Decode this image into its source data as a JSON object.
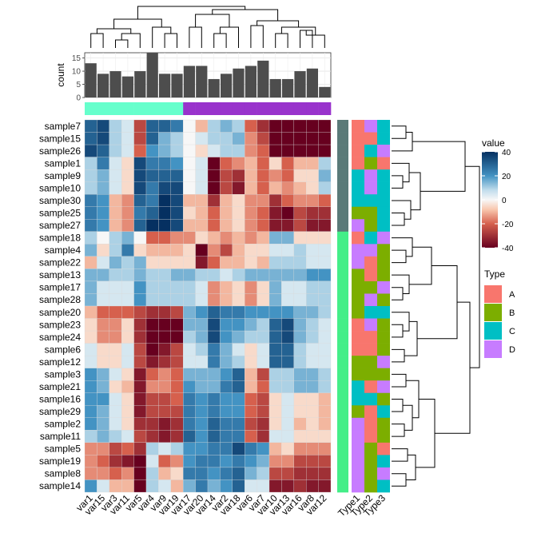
{
  "chart_data": {
    "type": "heatmap",
    "title": "",
    "rows": [
      "sample7",
      "sample15",
      "sample26",
      "sample1",
      "sample9",
      "sample10",
      "sample30",
      "sample25",
      "sample27",
      "sample18",
      "sample4",
      "sample22",
      "sample13",
      "sample17",
      "sample28",
      "sample20",
      "sample23",
      "sample24",
      "sample6",
      "sample12",
      "sample3",
      "sample21",
      "sample16",
      "sample29",
      "sample2",
      "sample11",
      "sample5",
      "sample19",
      "sample8",
      "sample14"
    ],
    "columns": [
      "var1",
      "var15",
      "var3",
      "var11",
      "var5",
      "var4",
      "var9",
      "var19",
      "var17",
      "var20",
      "var14",
      "var2",
      "var18",
      "var6",
      "var7",
      "var10",
      "var13",
      "var16",
      "var8",
      "var12"
    ],
    "values": [
      [
        30,
        35,
        10,
        5,
        -25,
        30,
        30,
        25,
        0,
        -10,
        10,
        15,
        10,
        -20,
        -30,
        -40,
        -45,
        -40,
        -40,
        -45
      ],
      [
        30,
        35,
        10,
        5,
        -25,
        30,
        15,
        10,
        0,
        5,
        10,
        10,
        15,
        -15,
        -25,
        -40,
        -40,
        -45,
        -45,
        -45
      ],
      [
        35,
        30,
        10,
        5,
        -20,
        20,
        15,
        10,
        0,
        -5,
        5,
        10,
        10,
        -15,
        -20,
        -40,
        -40,
        -40,
        -40,
        -40
      ],
      [
        10,
        25,
        5,
        -5,
        35,
        25,
        25,
        20,
        0,
        5,
        -40,
        -20,
        -15,
        -10,
        -20,
        -5,
        -20,
        -10,
        -10,
        10
      ],
      [
        10,
        15,
        5,
        -5,
        35,
        30,
        30,
        30,
        0,
        5,
        -40,
        -25,
        -30,
        -10,
        -20,
        -15,
        -20,
        -5,
        -5,
        15
      ],
      [
        10,
        15,
        5,
        -5,
        35,
        25,
        35,
        35,
        0,
        5,
        -40,
        -25,
        -35,
        -10,
        -20,
        -10,
        -15,
        -10,
        -5,
        10
      ],
      [
        25,
        20,
        -10,
        -15,
        30,
        25,
        40,
        35,
        -10,
        -10,
        -30,
        -10,
        -5,
        -15,
        -15,
        -30,
        -20,
        -15,
        -15,
        -20
      ],
      [
        25,
        20,
        -10,
        -15,
        25,
        30,
        40,
        35,
        -5,
        -10,
        -20,
        -10,
        -5,
        -15,
        -20,
        -35,
        -40,
        -25,
        -30,
        -30
      ],
      [
        25,
        20,
        -10,
        -15,
        30,
        40,
        40,
        35,
        -10,
        -10,
        -20,
        -10,
        -5,
        -15,
        -20,
        -35,
        -35,
        -25,
        -35,
        -35
      ],
      [
        10,
        0,
        10,
        15,
        0,
        -20,
        -20,
        -15,
        -15,
        -5,
        -10,
        -15,
        -10,
        -15,
        -10,
        15,
        15,
        -5,
        -5,
        -5
      ],
      [
        15,
        -5,
        10,
        25,
        -5,
        -10,
        -10,
        -10,
        -5,
        -45,
        -15,
        -25,
        -10,
        -5,
        -5,
        5,
        5,
        10,
        5,
        5
      ],
      [
        -10,
        5,
        15,
        10,
        15,
        -5,
        -5,
        -5,
        -5,
        -35,
        -20,
        -10,
        -10,
        -5,
        -10,
        10,
        10,
        10,
        5,
        5
      ],
      [
        15,
        15,
        10,
        10,
        15,
        10,
        10,
        15,
        15,
        10,
        10,
        5,
        10,
        15,
        15,
        15,
        15,
        15,
        20,
        20
      ],
      [
        15,
        5,
        5,
        5,
        20,
        10,
        10,
        10,
        10,
        5,
        -15,
        -10,
        -5,
        -15,
        -5,
        15,
        5,
        5,
        10,
        10
      ],
      [
        15,
        5,
        5,
        5,
        20,
        10,
        10,
        10,
        10,
        5,
        -15,
        -10,
        -5,
        -15,
        -5,
        15,
        5,
        5,
        10,
        10
      ],
      [
        -10,
        -20,
        -20,
        -20,
        -25,
        -30,
        -30,
        -25,
        15,
        20,
        30,
        25,
        25,
        20,
        20,
        20,
        20,
        15,
        15,
        10
      ],
      [
        -5,
        -15,
        -15,
        -5,
        -30,
        -45,
        -45,
        -40,
        15,
        15,
        35,
        20,
        20,
        15,
        10,
        30,
        35,
        15,
        10,
        5
      ],
      [
        -5,
        -15,
        -15,
        -5,
        -30,
        -45,
        -45,
        -40,
        10,
        15,
        35,
        20,
        15,
        10,
        10,
        30,
        35,
        15,
        10,
        5
      ],
      [
        5,
        -5,
        -5,
        5,
        -25,
        -40,
        -35,
        -25,
        5,
        10,
        25,
        15,
        5,
        -5,
        5,
        30,
        30,
        10,
        5,
        5
      ],
      [
        5,
        -5,
        -5,
        5,
        -25,
        -35,
        -30,
        -25,
        5,
        5,
        25,
        15,
        10,
        -5,
        5,
        30,
        30,
        10,
        5,
        5
      ],
      [
        20,
        15,
        5,
        -5,
        -35,
        -20,
        -15,
        -20,
        15,
        15,
        15,
        20,
        30,
        -10,
        -25,
        10,
        10,
        15,
        15,
        10
      ],
      [
        20,
        15,
        -5,
        -10,
        -35,
        -15,
        -15,
        -20,
        20,
        15,
        15,
        25,
        30,
        -10,
        -20,
        10,
        10,
        15,
        15,
        10
      ],
      [
        20,
        20,
        5,
        -5,
        -35,
        -25,
        -25,
        -20,
        25,
        20,
        25,
        20,
        20,
        -20,
        -25,
        -5,
        5,
        -5,
        -5,
        -10
      ],
      [
        20,
        15,
        5,
        -5,
        -35,
        -25,
        -25,
        -25,
        25,
        20,
        25,
        20,
        20,
        -20,
        -25,
        -5,
        5,
        -5,
        -5,
        -10
      ],
      [
        20,
        15,
        5,
        -5,
        -30,
        -30,
        -35,
        -30,
        25,
        20,
        30,
        25,
        25,
        -25,
        -30,
        -5,
        5,
        -10,
        -5,
        -10
      ],
      [
        10,
        15,
        10,
        5,
        -25,
        -30,
        -35,
        -30,
        30,
        20,
        30,
        25,
        25,
        -20,
        -30,
        5,
        5,
        -5,
        -5,
        -5
      ],
      [
        -15,
        -15,
        -25,
        -20,
        -30,
        10,
        5,
        10,
        20,
        20,
        25,
        25,
        35,
        25,
        20,
        -10,
        -5,
        -15,
        -15,
        -15
      ],
      [
        -15,
        -20,
        -30,
        -35,
        -40,
        5,
        -20,
        -15,
        20,
        25,
        25,
        20,
        25,
        20,
        15,
        -15,
        -15,
        -25,
        -25,
        -25
      ],
      [
        -15,
        -15,
        -20,
        -15,
        -40,
        10,
        -10,
        -5,
        25,
        25,
        20,
        25,
        30,
        15,
        10,
        -25,
        -25,
        -30,
        -30,
        -30
      ],
      [
        20,
        5,
        -10,
        -10,
        -45,
        10,
        5,
        -10,
        15,
        25,
        15,
        20,
        30,
        5,
        5,
        -35,
        -35,
        -30,
        -35,
        -35
      ]
    ],
    "color_scale": {
      "name": "value",
      "range": [
        -40,
        40
      ],
      "ticks": [
        40,
        20,
        0,
        -20,
        -40
      ],
      "low": "#67001F",
      "mid": "#F7F7F7",
      "high": "#053061"
    },
    "top_barplot": {
      "ylabel": "count",
      "yticks": [
        0,
        5,
        10,
        15
      ],
      "ylim": [
        0,
        17
      ],
      "values": [
        13,
        9,
        10,
        8,
        10,
        17,
        9,
        9,
        12,
        12,
        7,
        9,
        11,
        12,
        14,
        7,
        7,
        10,
        11,
        4
      ],
      "bar_color": "#4D4D4D"
    },
    "column_groups": {
      "values": [
        1,
        1,
        1,
        1,
        1,
        1,
        1,
        1,
        2,
        2,
        2,
        2,
        2,
        2,
        2,
        2,
        2,
        2,
        2,
        2
      ],
      "colors": {
        "1": "#66FFCC",
        "2": "#9933CC"
      }
    },
    "row_groups": {
      "values": [
        1,
        1,
        1,
        1,
        1,
        1,
        1,
        1,
        1,
        2,
        2,
        2,
        2,
        2,
        2,
        2,
        2,
        2,
        2,
        2,
        2,
        2,
        2,
        2,
        2,
        2,
        2,
        2,
        2,
        2
      ],
      "colors": {
        "1": "#5A7A78",
        "2": "#44EE88"
      }
    },
    "type_annotations": {
      "labels": [
        "Type1",
        "Type2",
        "Type3"
      ],
      "values": [
        [
          "A",
          "D",
          "C"
        ],
        [
          "A",
          "A",
          "C"
        ],
        [
          "A",
          "C",
          "D"
        ],
        [
          "A",
          "B",
          "A"
        ],
        [
          "C",
          "D",
          "C"
        ],
        [
          "C",
          "D",
          "C"
        ],
        [
          "C",
          "C",
          "C"
        ],
        [
          "B",
          "B",
          "C"
        ],
        [
          "D",
          "B",
          "C"
        ],
        [
          "A",
          "C",
          "D"
        ],
        [
          "D",
          "D",
          "B"
        ],
        [
          "D",
          "A",
          "B"
        ],
        [
          "B",
          "A",
          "B"
        ],
        [
          "B",
          "B",
          "D"
        ],
        [
          "B",
          "D",
          "B"
        ],
        [
          "B",
          "C",
          "C"
        ],
        [
          "A",
          "D",
          "B"
        ],
        [
          "A",
          "A",
          "B"
        ],
        [
          "A",
          "A",
          "B"
        ],
        [
          "B",
          "B",
          "D"
        ],
        [
          "B",
          "B",
          "B"
        ],
        [
          "C",
          "A",
          "D"
        ],
        [
          "C",
          "C",
          "B"
        ],
        [
          "B",
          "A",
          "C"
        ],
        [
          "D",
          "A",
          "B"
        ],
        [
          "D",
          "A",
          "B"
        ],
        [
          "D",
          "B",
          "A"
        ],
        [
          "D",
          "B",
          "C"
        ],
        [
          "D",
          "B",
          "D"
        ],
        [
          "D",
          "B",
          "C"
        ]
      ]
    },
    "legend": {
      "title": "Type",
      "entries": [
        {
          "label": "A",
          "color": "#F8766D"
        },
        {
          "label": "B",
          "color": "#7CAE00"
        },
        {
          "label": "C",
          "color": "#00BFC4"
        },
        {
          "label": "D",
          "color": "#C77CFF"
        }
      ]
    }
  }
}
